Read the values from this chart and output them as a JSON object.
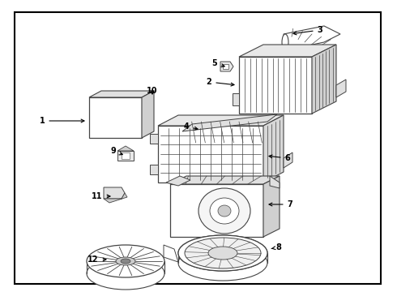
{
  "background_color": "#ffffff",
  "border_color": "#000000",
  "line_color": "#444444",
  "text_color": "#000000",
  "fig_width": 4.9,
  "fig_height": 3.6,
  "dpi": 100
}
